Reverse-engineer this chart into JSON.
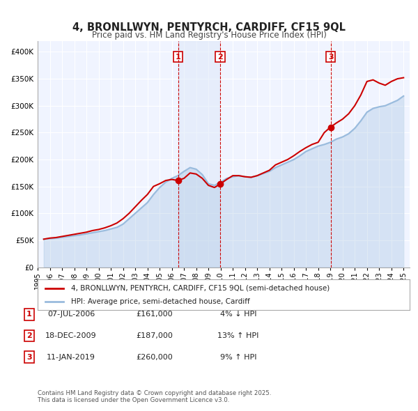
{
  "title": "4, BRONLLWYN, PENTYRCH, CARDIFF, CF15 9QL",
  "subtitle": "Price paid vs. HM Land Registry's House Price Index (HPI)",
  "title_fontsize": 11,
  "subtitle_fontsize": 9,
  "bg_color": "#ffffff",
  "plot_bg_color": "#f0f4ff",
  "grid_color": "#ffffff",
  "legend_label_red": "4, BRONLLWYN, PENTYRCH, CARDIFF, CF15 9QL (semi-detached house)",
  "legend_label_blue": "HPI: Average price, semi-detached house, Cardiff",
  "footer": "Contains HM Land Registry data © Crown copyright and database right 2025.\nThis data is licensed under the Open Government Licence v3.0.",
  "transactions": [
    {
      "num": 1,
      "date": "07-JUL-2006",
      "price": 161000,
      "pct": "4%",
      "dir": "↓",
      "x": 2006.52
    },
    {
      "num": 2,
      "date": "18-DEC-2009",
      "price": 187000,
      "pct": "13%",
      "dir": "↑",
      "x": 2009.96
    },
    {
      "num": 3,
      "date": "11-JAN-2019",
      "price": 260000,
      "pct": "9%",
      "dir": "↑",
      "x": 2019.04
    }
  ],
  "hpi_x": [
    1995.5,
    1996,
    1996.5,
    1997,
    1997.5,
    1998,
    1998.5,
    1999,
    1999.5,
    2000,
    2000.5,
    2001,
    2001.5,
    2002,
    2002.5,
    2003,
    2003.5,
    2004,
    2004.5,
    2005,
    2005.5,
    2006,
    2006.5,
    2007,
    2007.5,
    2008,
    2008.5,
    2009,
    2009.5,
    2010,
    2010.5,
    2011,
    2011.5,
    2012,
    2012.5,
    2013,
    2013.5,
    2014,
    2014.5,
    2015,
    2015.5,
    2016,
    2016.5,
    2017,
    2017.5,
    2018,
    2018.5,
    2019,
    2019.5,
    2020,
    2020.5,
    2021,
    2021.5,
    2022,
    2022.5,
    2023,
    2023.5,
    2024,
    2024.5,
    2025
  ],
  "hpi_y": [
    52000,
    53000,
    54000,
    55500,
    57000,
    58500,
    60000,
    62000,
    64000,
    66000,
    68000,
    71000,
    74000,
    80000,
    90000,
    100000,
    110000,
    120000,
    135000,
    148000,
    158000,
    165000,
    170000,
    178000,
    185000,
    182000,
    172000,
    155000,
    152000,
    158000,
    165000,
    168000,
    170000,
    168000,
    167000,
    170000,
    174000,
    178000,
    185000,
    190000,
    195000,
    200000,
    207000,
    215000,
    220000,
    225000,
    228000,
    232000,
    238000,
    242000,
    248000,
    258000,
    272000,
    288000,
    295000,
    298000,
    300000,
    305000,
    310000,
    318000
  ],
  "price_x": [
    1995.5,
    1996,
    1996.5,
    1997,
    1997.5,
    1998,
    1998.5,
    1999,
    1999.5,
    2000,
    2000.5,
    2001,
    2001.5,
    2002,
    2002.5,
    2003,
    2003.5,
    2004,
    2004.5,
    2005,
    2005.5,
    2006,
    2006.5,
    2007,
    2007.5,
    2008,
    2008.5,
    2009,
    2009.5,
    2010,
    2010.5,
    2011,
    2011.5,
    2012,
    2012.5,
    2013,
    2013.5,
    2014,
    2014.5,
    2015,
    2015.5,
    2016,
    2016.5,
    2017,
    2017.5,
    2018,
    2018.5,
    2019,
    2019.5,
    2020,
    2020.5,
    2021,
    2021.5,
    2022,
    2022.5,
    2023,
    2023.5,
    2024,
    2024.5,
    2025
  ],
  "price_y": [
    52000,
    54000,
    55000,
    57000,
    59000,
    61000,
    63000,
    65000,
    68000,
    70000,
    73000,
    77000,
    82000,
    90000,
    100000,
    112000,
    124000,
    135000,
    150000,
    155000,
    161000,
    163000,
    161000,
    165000,
    175000,
    173000,
    165000,
    152000,
    148000,
    155000,
    163000,
    170000,
    170000,
    168000,
    167000,
    170000,
    175000,
    180000,
    190000,
    195000,
    200000,
    207000,
    215000,
    222000,
    228000,
    232000,
    250000,
    260000,
    268000,
    275000,
    285000,
    300000,
    320000,
    345000,
    348000,
    342000,
    338000,
    345000,
    350000,
    352000
  ],
  "ylim": [
    0,
    420000
  ],
  "xlim": [
    1995,
    2025.5
  ],
  "yticks": [
    0,
    50000,
    100000,
    150000,
    200000,
    250000,
    300000,
    350000,
    400000
  ],
  "ytick_labels": [
    "£0",
    "£50K",
    "£100K",
    "£150K",
    "£200K",
    "£250K",
    "£300K",
    "£350K",
    "£400K"
  ],
  "xtick_years": [
    1995,
    1996,
    1997,
    1998,
    1999,
    2000,
    2001,
    2002,
    2003,
    2004,
    2005,
    2006,
    2007,
    2008,
    2009,
    2010,
    2011,
    2012,
    2013,
    2014,
    2015,
    2016,
    2017,
    2018,
    2019,
    2020,
    2021,
    2022,
    2023,
    2024,
    2025
  ],
  "red_color": "#cc0000",
  "blue_color": "#99bbdd",
  "vline_color": "#cc0000",
  "marker_color_red": "#cc0000",
  "shade_color": "#dde8f8"
}
